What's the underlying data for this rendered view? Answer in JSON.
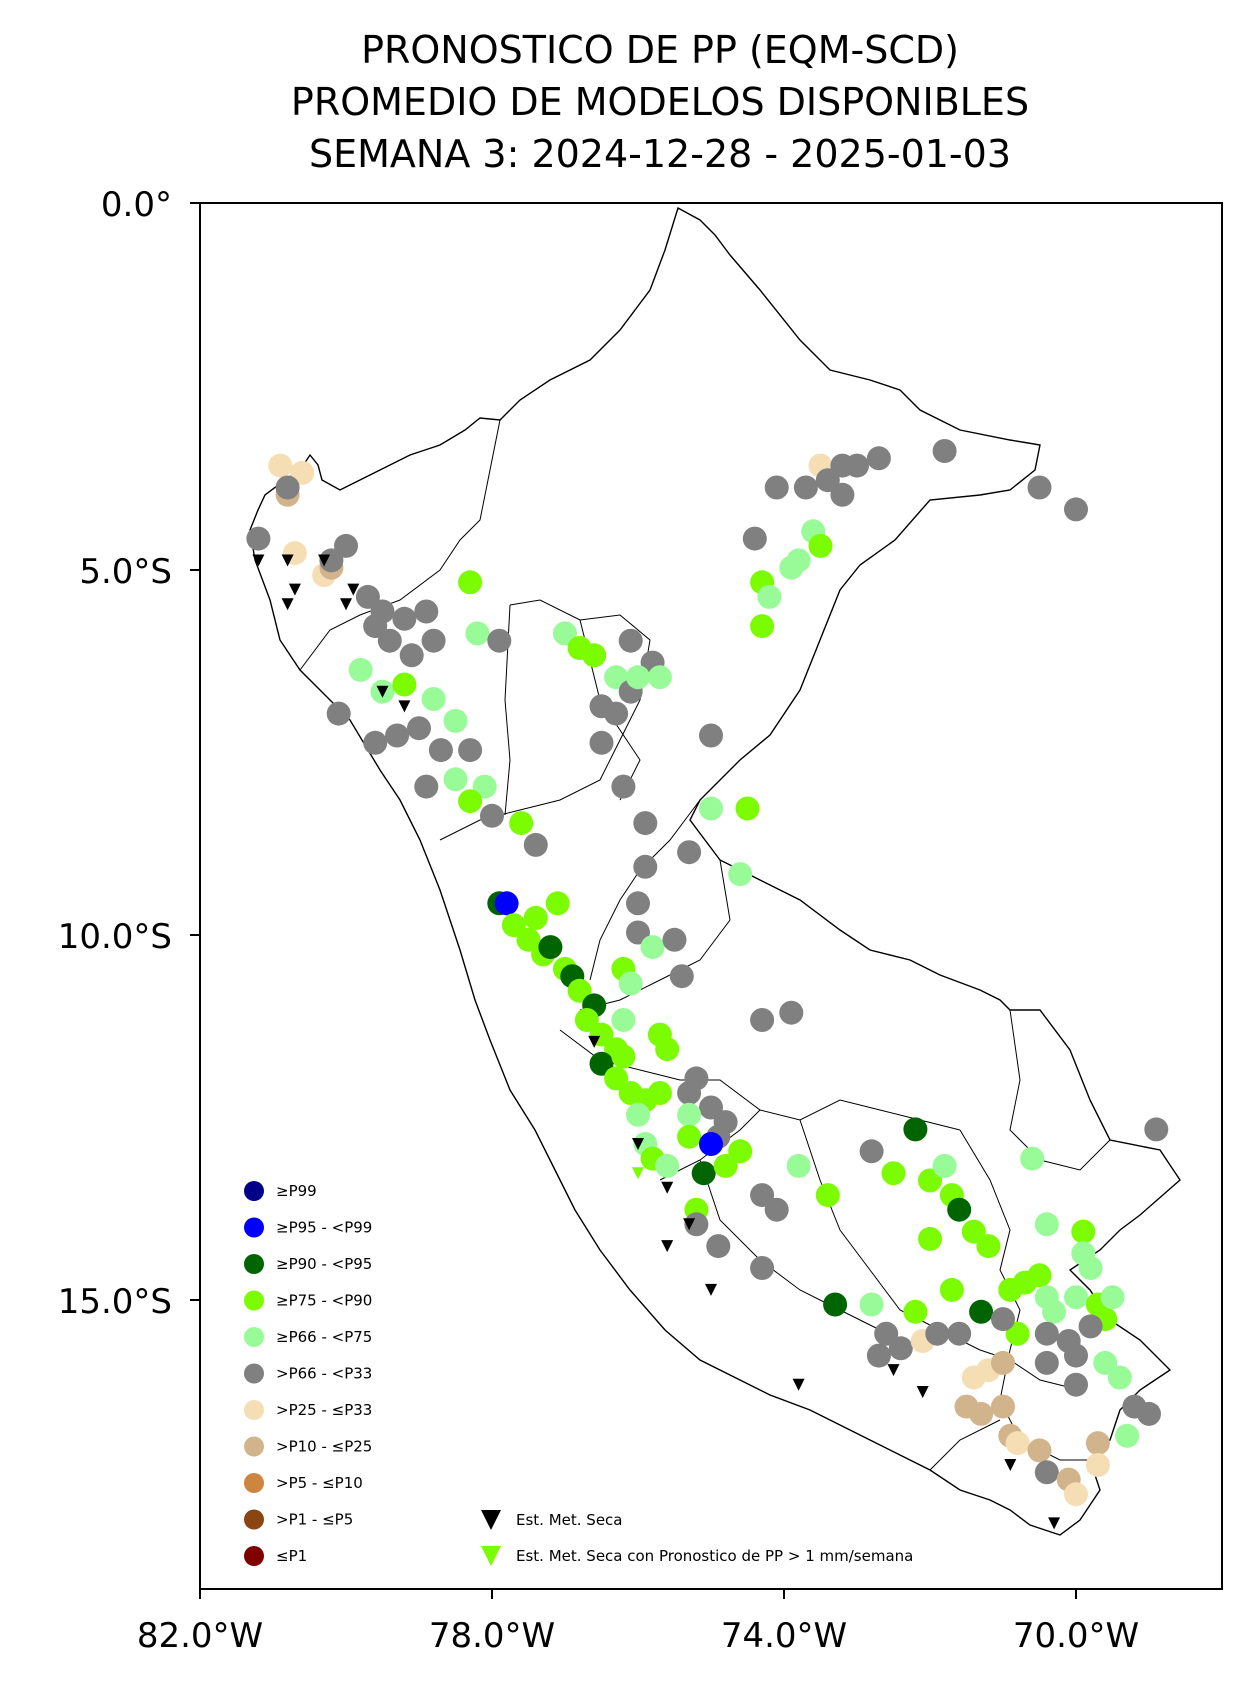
{
  "title": {
    "line1": "PRONOSTICO DE PP (EQM-SCD)",
    "line2": "PROMEDIO DE MODELOS DISPONIBLES",
    "line3": "SEMANA 3: 2024-12-28 - 2025-01-03"
  },
  "axes": {
    "lon_range": [
      -82,
      -68
    ],
    "lat_range": [
      -19,
      0
    ],
    "x_ticks": [
      "82.0°W",
      "78.0°W",
      "74.0°W",
      "70.0°W"
    ],
    "y_ticks": [
      "0.0°",
      "5.0°S",
      "10.0°S",
      "15.0°S"
    ]
  },
  "legend": {
    "categories": [
      {
        "label": "≥P99",
        "color": "#00008b"
      },
      {
        "label": "≥P95 - <P99",
        "color": "#0000ff"
      },
      {
        "label": "≥P90 - <P95",
        "color": "#006400"
      },
      {
        "label": "≥P75 - <P90",
        "color": "#7cfc00"
      },
      {
        "label": "≥P66 - <P75",
        "color": "#98fb98"
      },
      {
        "label": ">P66 - <P33",
        "color": "#808080"
      },
      {
        "label": ">P25 - ≤P33",
        "color": "#f5deb3"
      },
      {
        "label": ">P10 - ≤P25",
        "color": "#d2b48c"
      },
      {
        "label": ">P5 - ≤P10",
        "color": "#cd853f"
      },
      {
        "label": ">P1 - ≤P5",
        "color": "#8b4513"
      },
      {
        "label": "≤P1",
        "color": "#800000"
      }
    ],
    "markers": [
      {
        "label": "Est. Met. Seca",
        "color": "#000000"
      },
      {
        "label": "Est. Met. Seca con Pronostico de PP > 1 mm/semana",
        "color": "#7cfc00"
      }
    ]
  },
  "stations": [
    {
      "lon": -80.9,
      "lat": -3.6,
      "c": 6
    },
    {
      "lon": -80.6,
      "lat": -3.7,
      "c": 6
    },
    {
      "lon": -80.8,
      "lat": -4.0,
      "c": 7
    },
    {
      "lon": -80.8,
      "lat": -3.9,
      "c": 5
    },
    {
      "lon": -81.2,
      "lat": -4.6,
      "c": 5
    },
    {
      "lon": -80.7,
      "lat": -4.8,
      "c": 6
    },
    {
      "lon": -80.0,
      "lat": -4.7,
      "c": 5
    },
    {
      "lon": -80.3,
      "lat": -5.1,
      "c": 6
    },
    {
      "lon": -80.2,
      "lat": -5.0,
      "c": 7
    },
    {
      "lon": -80.2,
      "lat": -4.9,
      "c": 5
    },
    {
      "lon": -79.7,
      "lat": -5.4,
      "c": 5
    },
    {
      "lon": -79.5,
      "lat": -5.6,
      "c": 5
    },
    {
      "lon": -79.2,
      "lat": -5.7,
      "c": 5
    },
    {
      "lon": -78.9,
      "lat": -5.6,
      "c": 5
    },
    {
      "lon": -79.6,
      "lat": -5.8,
      "c": 5
    },
    {
      "lon": -79.4,
      "lat": -6.0,
      "c": 5
    },
    {
      "lon": -79.1,
      "lat": -6.2,
      "c": 5
    },
    {
      "lon": -78.8,
      "lat": -6.0,
      "c": 5
    },
    {
      "lon": -79.8,
      "lat": -6.4,
      "c": 4
    },
    {
      "lon": -79.5,
      "lat": -6.7,
      "c": 4
    },
    {
      "lon": -79.2,
      "lat": -6.6,
      "c": 3
    },
    {
      "lon": -78.8,
      "lat": -6.8,
      "c": 4
    },
    {
      "lon": -78.5,
      "lat": -7.1,
      "c": 4
    },
    {
      "lon": -79.0,
      "lat": -7.2,
      "c": 5
    },
    {
      "lon": -79.3,
      "lat": -7.3,
      "c": 5
    },
    {
      "lon": -80.1,
      "lat": -7.0,
      "c": 5
    },
    {
      "lon": -79.6,
      "lat": -7.4,
      "c": 5
    },
    {
      "lon": -78.7,
      "lat": -7.5,
      "c": 5
    },
    {
      "lon": -78.3,
      "lat": -7.5,
      "c": 5
    },
    {
      "lon": -78.5,
      "lat": -7.9,
      "c": 4
    },
    {
      "lon": -78.1,
      "lat": -8.0,
      "c": 4
    },
    {
      "lon": -78.9,
      "lat": -8.0,
      "c": 5
    },
    {
      "lon": -78.0,
      "lat": -8.4,
      "c": 5
    },
    {
      "lon": -78.3,
      "lat": -8.2,
      "c": 3
    },
    {
      "lon": -78.2,
      "lat": -5.9,
      "c": 4
    },
    {
      "lon": -77.9,
      "lat": -6.0,
      "c": 5
    },
    {
      "lon": -78.3,
      "lat": -5.2,
      "c": 3
    },
    {
      "lon": -77.0,
      "lat": -5.9,
      "c": 4
    },
    {
      "lon": -76.8,
      "lat": -6.1,
      "c": 3
    },
    {
      "lon": -76.6,
      "lat": -6.2,
      "c": 3
    },
    {
      "lon": -76.3,
      "lat": -6.5,
      "c": 4
    },
    {
      "lon": -76.1,
      "lat": -6.0,
      "c": 5
    },
    {
      "lon": -75.8,
      "lat": -6.3,
      "c": 5
    },
    {
      "lon": -76.1,
      "lat": -6.7,
      "c": 5
    },
    {
      "lon": -76.3,
      "lat": -7.0,
      "c": 5
    },
    {
      "lon": -76.0,
      "lat": -6.5,
      "c": 4
    },
    {
      "lon": -75.7,
      "lat": -6.5,
      "c": 4
    },
    {
      "lon": -76.5,
      "lat": -6.9,
      "c": 5
    },
    {
      "lon": -76.5,
      "lat": -7.4,
      "c": 5
    },
    {
      "lon": -76.2,
      "lat": -8.0,
      "c": 5
    },
    {
      "lon": -75.0,
      "lat": -7.3,
      "c": 5
    },
    {
      "lon": -75.0,
      "lat": -8.3,
      "c": 4
    },
    {
      "lon": -74.5,
      "lat": -8.3,
      "c": 3
    },
    {
      "lon": -74.6,
      "lat": -9.2,
      "c": 4
    },
    {
      "lon": -75.3,
      "lat": -8.9,
      "c": 5
    },
    {
      "lon": -75.9,
      "lat": -8.5,
      "c": 5
    },
    {
      "lon": -75.9,
      "lat": -9.1,
      "c": 5
    },
    {
      "lon": -76.0,
      "lat": -9.6,
      "c": 5
    },
    {
      "lon": -76.0,
      "lat": -10.0,
      "c": 5
    },
    {
      "lon": -75.8,
      "lat": -10.2,
      "c": 4
    },
    {
      "lon": -75.5,
      "lat": -10.1,
      "c": 5
    },
    {
      "lon": -75.4,
      "lat": -10.6,
      "c": 5
    },
    {
      "lon": -74.3,
      "lat": -11.2,
      "c": 5
    },
    {
      "lon": -73.9,
      "lat": -11.1,
      "c": 5
    },
    {
      "lon": -77.6,
      "lat": -8.5,
      "c": 3
    },
    {
      "lon": -77.4,
      "lat": -8.8,
      "c": 5
    },
    {
      "lon": -77.9,
      "lat": -9.6,
      "c": 2
    },
    {
      "lon": -77.8,
      "lat": -9.6,
      "c": 1
    },
    {
      "lon": -77.7,
      "lat": -9.9,
      "c": 3
    },
    {
      "lon": -77.4,
      "lat": -9.8,
      "c": 3
    },
    {
      "lon": -77.1,
      "lat": -9.6,
      "c": 3
    },
    {
      "lon": -77.5,
      "lat": -10.1,
      "c": 3
    },
    {
      "lon": -77.3,
      "lat": -10.3,
      "c": 3
    },
    {
      "lon": -77.2,
      "lat": -10.2,
      "c": 2
    },
    {
      "lon": -77.0,
      "lat": -10.5,
      "c": 3
    },
    {
      "lon": -76.9,
      "lat": -10.6,
      "c": 2
    },
    {
      "lon": -76.8,
      "lat": -10.8,
      "c": 3
    },
    {
      "lon": -76.6,
      "lat": -11.0,
      "c": 2
    },
    {
      "lon": -76.7,
      "lat": -11.2,
      "c": 3
    },
    {
      "lon": -76.5,
      "lat": -11.4,
      "c": 3
    },
    {
      "lon": -76.3,
      "lat": -11.6,
      "c": 3
    },
    {
      "lon": -76.5,
      "lat": -11.8,
      "c": 2
    },
    {
      "lon": -76.2,
      "lat": -11.7,
      "c": 3
    },
    {
      "lon": -76.3,
      "lat": -12.0,
      "c": 3
    },
    {
      "lon": -76.1,
      "lat": -12.2,
      "c": 3
    },
    {
      "lon": -75.9,
      "lat": -12.3,
      "c": 3
    },
    {
      "lon": -75.7,
      "lat": -12.2,
      "c": 3
    },
    {
      "lon": -76.0,
      "lat": -12.5,
      "c": 4
    },
    {
      "lon": -76.2,
      "lat": -10.5,
      "c": 3
    },
    {
      "lon": -76.1,
      "lat": -10.7,
      "c": 4
    },
    {
      "lon": -76.2,
      "lat": -11.2,
      "c": 4
    },
    {
      "lon": -75.9,
      "lat": -12.9,
      "c": 4
    },
    {
      "lon": -75.8,
      "lat": -13.1,
      "c": 3
    },
    {
      "lon": -75.6,
      "lat": -13.2,
      "c": 4
    },
    {
      "lon": -75.7,
      "lat": -11.4,
      "c": 3
    },
    {
      "lon": -75.6,
      "lat": -11.6,
      "c": 3
    },
    {
      "lon": -75.3,
      "lat": -12.2,
      "c": 5
    },
    {
      "lon": -75.2,
      "lat": -12.0,
      "c": 5
    },
    {
      "lon": -75.0,
      "lat": -12.4,
      "c": 5
    },
    {
      "lon": -74.8,
      "lat": -12.6,
      "c": 5
    },
    {
      "lon": -75.3,
      "lat": -12.5,
      "c": 4
    },
    {
      "lon": -75.3,
      "lat": -12.8,
      "c": 3
    },
    {
      "lon": -74.9,
      "lat": -12.8,
      "c": 5
    },
    {
      "lon": -75.0,
      "lat": -12.9,
      "c": 1
    },
    {
      "lon": -75.1,
      "lat": -13.3,
      "c": 2
    },
    {
      "lon": -74.8,
      "lat": -13.2,
      "c": 3
    },
    {
      "lon": -74.6,
      "lat": -13.0,
      "c": 3
    },
    {
      "lon": -75.2,
      "lat": -13.8,
      "c": 3
    },
    {
      "lon": -75.2,
      "lat": -14.0,
      "c": 5
    },
    {
      "lon": -74.9,
      "lat": -14.3,
      "c": 5
    },
    {
      "lon": -74.3,
      "lat": -13.6,
      "c": 5
    },
    {
      "lon": -74.1,
      "lat": -13.8,
      "c": 5
    },
    {
      "lon": -74.3,
      "lat": -14.6,
      "c": 5
    },
    {
      "lon": -73.8,
      "lat": -13.2,
      "c": 4
    },
    {
      "lon": -73.4,
      "lat": -13.6,
      "c": 3
    },
    {
      "lon": -73.3,
      "lat": -15.1,
      "c": 2
    },
    {
      "lon": -72.8,
      "lat": -13.0,
      "c": 5
    },
    {
      "lon": -72.5,
      "lat": -13.3,
      "c": 3
    },
    {
      "lon": -72.2,
      "lat": -12.7,
      "c": 2
    },
    {
      "lon": -72.0,
      "lat": -13.4,
      "c": 3
    },
    {
      "lon": -71.7,
      "lat": -13.6,
      "c": 3
    },
    {
      "lon": -71.6,
      "lat": -13.8,
      "c": 2
    },
    {
      "lon": -71.4,
      "lat": -14.1,
      "c": 3
    },
    {
      "lon": -71.2,
      "lat": -14.3,
      "c": 3
    },
    {
      "lon": -71.8,
      "lat": -13.2,
      "c": 4
    },
    {
      "lon": -72.0,
      "lat": -14.2,
      "c": 3
    },
    {
      "lon": -72.8,
      "lat": -15.1,
      "c": 4
    },
    {
      "lon": -72.2,
      "lat": -15.2,
      "c": 3
    },
    {
      "lon": -71.7,
      "lat": -14.9,
      "c": 3
    },
    {
      "lon": -71.3,
      "lat": -15.2,
      "c": 2
    },
    {
      "lon": -70.9,
      "lat": -14.9,
      "c": 3
    },
    {
      "lon": -70.7,
      "lat": -14.8,
      "c": 3
    },
    {
      "lon": -70.5,
      "lat": -14.7,
      "c": 3
    },
    {
      "lon": -70.4,
      "lat": -15.0,
      "c": 4
    },
    {
      "lon": -70.3,
      "lat": -15.2,
      "c": 4
    },
    {
      "lon": -70.0,
      "lat": -15.0,
      "c": 4
    },
    {
      "lon": -69.8,
      "lat": -14.6,
      "c": 4
    },
    {
      "lon": -69.7,
      "lat": -15.1,
      "c": 3
    },
    {
      "lon": -69.6,
      "lat": -15.3,
      "c": 3
    },
    {
      "lon": -69.5,
      "lat": -15.0,
      "c": 4
    },
    {
      "lon": -69.9,
      "lat": -14.1,
      "c": 3
    },
    {
      "lon": -70.4,
      "lat": -14.0,
      "c": 4
    },
    {
      "lon": -70.6,
      "lat": -13.1,
      "c": 4
    },
    {
      "lon": -69.9,
      "lat": -14.4,
      "c": 4
    },
    {
      "lon": -70.8,
      "lat": -15.5,
      "c": 3
    },
    {
      "lon": -70.4,
      "lat": -15.5,
      "c": 5
    },
    {
      "lon": -70.1,
      "lat": -15.6,
      "c": 5
    },
    {
      "lon": -70.0,
      "lat": -15.8,
      "c": 5
    },
    {
      "lon": -69.8,
      "lat": -15.4,
      "c": 5
    },
    {
      "lon": -69.6,
      "lat": -15.9,
      "c": 4
    },
    {
      "lon": -70.0,
      "lat": -16.2,
      "c": 5
    },
    {
      "lon": -70.4,
      "lat": -15.9,
      "c": 5
    },
    {
      "lon": -69.2,
      "lat": -16.5,
      "c": 5
    },
    {
      "lon": -69.0,
      "lat": -16.6,
      "c": 5
    },
    {
      "lon": -69.4,
      "lat": -16.1,
      "c": 4
    },
    {
      "lon": -69.3,
      "lat": -16.9,
      "c": 4
    },
    {
      "lon": -71.2,
      "lat": -16.0,
      "c": 6
    },
    {
      "lon": -71.0,
      "lat": -15.9,
      "c": 7
    },
    {
      "lon": -71.4,
      "lat": -16.1,
      "c": 6
    },
    {
      "lon": -71.5,
      "lat": -16.5,
      "c": 7
    },
    {
      "lon": -71.3,
      "lat": -16.6,
      "c": 7
    },
    {
      "lon": -71.0,
      "lat": -16.5,
      "c": 7
    },
    {
      "lon": -70.9,
      "lat": -16.9,
      "c": 7
    },
    {
      "lon": -70.8,
      "lat": -17.0,
      "c": 6
    },
    {
      "lon": -70.5,
      "lat": -17.1,
      "c": 7
    },
    {
      "lon": -70.4,
      "lat": -17.4,
      "c": 5
    },
    {
      "lon": -70.1,
      "lat": -17.5,
      "c": 7
    },
    {
      "lon": -70.0,
      "lat": -17.7,
      "c": 6
    },
    {
      "lon": -69.7,
      "lat": -17.0,
      "c": 7
    },
    {
      "lon": -69.7,
      "lat": -17.3,
      "c": 6
    },
    {
      "lon": -72.4,
      "lat": -15.7,
      "c": 5
    },
    {
      "lon": -72.7,
      "lat": -15.8,
      "c": 5
    },
    {
      "lon": -72.6,
      "lat": -15.5,
      "c": 5
    },
    {
      "lon": -72.1,
      "lat": -15.6,
      "c": 6
    },
    {
      "lon": -71.9,
      "lat": -15.5,
      "c": 5
    },
    {
      "lon": -71.6,
      "lat": -15.5,
      "c": 5
    },
    {
      "lon": -71.0,
      "lat": -15.3,
      "c": 5
    },
    {
      "lon": -73.5,
      "lat": -3.6,
      "c": 6
    },
    {
      "lon": -73.2,
      "lat": -3.6,
      "c": 5
    },
    {
      "lon": -73.0,
      "lat": -3.6,
      "c": 5
    },
    {
      "lon": -72.7,
      "lat": -3.5,
      "c": 5
    },
    {
      "lon": -71.8,
      "lat": -3.4,
      "c": 5
    },
    {
      "lon": -73.7,
      "lat": -3.9,
      "c": 5
    },
    {
      "lon": -73.4,
      "lat": -3.8,
      "c": 5
    },
    {
      "lon": -73.2,
      "lat": -4.0,
      "c": 5
    },
    {
      "lon": -74.1,
      "lat": -3.9,
      "c": 5
    },
    {
      "lon": -70.5,
      "lat": -3.9,
      "c": 5
    },
    {
      "lon": -70.0,
      "lat": -4.2,
      "c": 5
    },
    {
      "lon": -74.4,
      "lat": -4.6,
      "c": 5
    },
    {
      "lon": -73.6,
      "lat": -4.5,
      "c": 4
    },
    {
      "lon": -73.5,
      "lat": -4.7,
      "c": 3
    },
    {
      "lon": -73.8,
      "lat": -4.9,
      "c": 4
    },
    {
      "lon": -73.9,
      "lat": -5.0,
      "c": 4
    },
    {
      "lon": -74.3,
      "lat": -5.2,
      "c": 3
    },
    {
      "lon": -74.2,
      "lat": -5.4,
      "c": 4
    },
    {
      "lon": -74.3,
      "lat": -5.8,
      "c": 3
    },
    {
      "lon": -68.9,
      "lat": -12.7,
      "c": 5
    }
  ],
  "dry_stations": [
    {
      "lon": -81.2,
      "lat": -4.9,
      "c": 0
    },
    {
      "lon": -80.8,
      "lat": -4.9,
      "c": 0
    },
    {
      "lon": -80.3,
      "lat": -4.9,
      "c": 0
    },
    {
      "lon": -80.7,
      "lat": -5.3,
      "c": 0
    },
    {
      "lon": -80.8,
      "lat": -5.5,
      "c": 0
    },
    {
      "lon": -79.9,
      "lat": -5.3,
      "c": 0
    },
    {
      "lon": -80.0,
      "lat": -5.5,
      "c": 0
    },
    {
      "lon": -79.5,
      "lat": -6.7,
      "c": 0
    },
    {
      "lon": -79.2,
      "lat": -6.9,
      "c": 0
    },
    {
      "lon": -76.6,
      "lat": -11.5,
      "c": 0
    },
    {
      "lon": -76.0,
      "lat": -12.9,
      "c": 0
    },
    {
      "lon": -75.6,
      "lat": -13.5,
      "c": 0
    },
    {
      "lon": -75.3,
      "lat": -14.0,
      "c": 0
    },
    {
      "lon": -76.0,
      "lat": -13.3,
      "c": 1
    },
    {
      "lon": -75.6,
      "lat": -14.3,
      "c": 0
    },
    {
      "lon": -75.0,
      "lat": -14.9,
      "c": 0
    },
    {
      "lon": -73.8,
      "lat": -16.2,
      "c": 0
    },
    {
      "lon": -72.5,
      "lat": -16.0,
      "c": 0
    },
    {
      "lon": -72.1,
      "lat": -16.3,
      "c": 0
    },
    {
      "lon": -70.9,
      "lat": -17.3,
      "c": 0
    },
    {
      "lon": -70.3,
      "lat": -18.1,
      "c": 0
    }
  ]
}
